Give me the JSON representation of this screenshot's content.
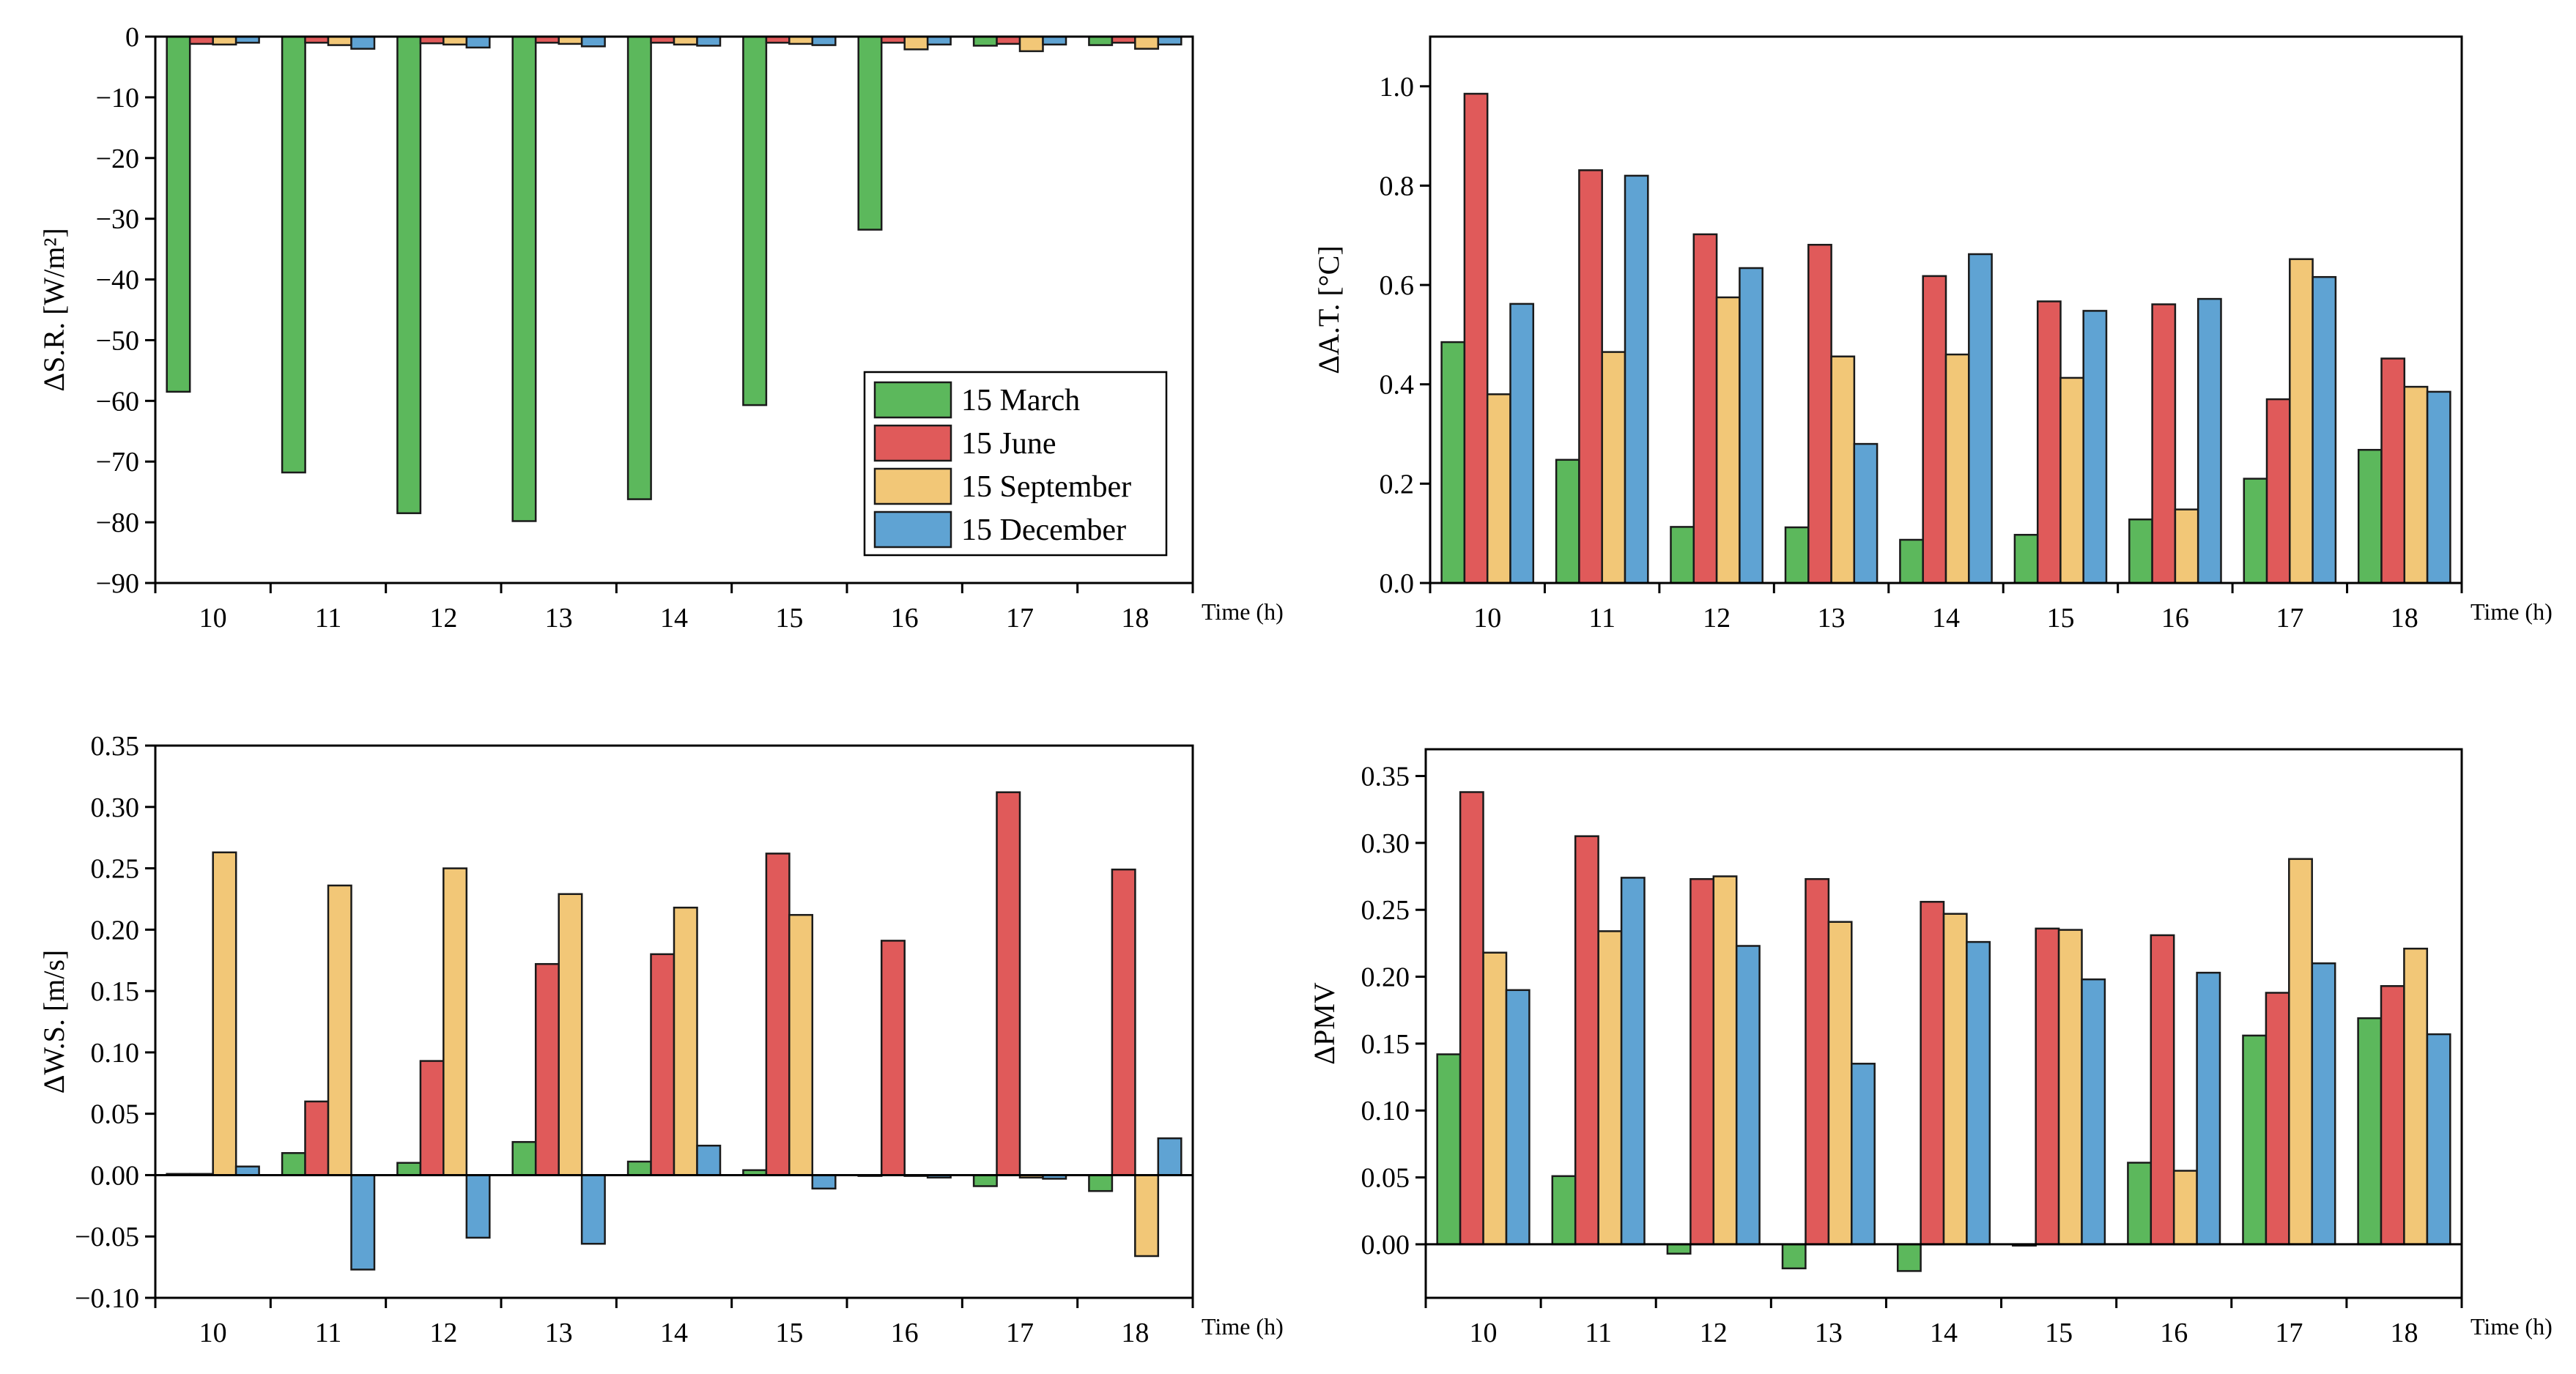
{
  "series_meta": [
    {
      "name": "15 March",
      "color": "#5cb85c"
    },
    {
      "name": "15 June",
      "color": "#e05a5a"
    },
    {
      "name": "15 September",
      "color": "#f2c777"
    },
    {
      "name": "15 December",
      "color": "#5fa3d3"
    }
  ],
  "chart_data": [
    {
      "type": "bar",
      "title": "",
      "xlabel": "Time (h)",
      "ylabel": "ΔS.R. [W/m²]",
      "categories": [
        "10",
        "11",
        "12",
        "13",
        "14",
        "15",
        "16",
        "17",
        "18"
      ],
      "ylim": [
        -90,
        0
      ],
      "yticks": [
        0,
        -10,
        -20,
        -30,
        -40,
        -50,
        -60,
        -70,
        -80,
        -90
      ],
      "ytick_labels": [
        "0",
        "−10",
        "−20",
        "−30",
        "−40",
        "−50",
        "−60",
        "−70",
        "−80",
        "−90"
      ],
      "legend": "inside-lower-right",
      "series": [
        {
          "name": "15 March",
          "values": [
            -58.5,
            -71.8,
            -78.5,
            -79.8,
            -76.2,
            -60.7,
            -31.8,
            -1.5,
            -1.4
          ]
        },
        {
          "name": "15 June",
          "values": [
            -1.2,
            -1.0,
            -1.1,
            -1.0,
            -1.0,
            -1.0,
            -1.0,
            -1.2,
            -1.0
          ]
        },
        {
          "name": "15 September",
          "values": [
            -1.3,
            -1.4,
            -1.3,
            -1.2,
            -1.3,
            -1.2,
            -2.1,
            -2.4,
            -2.0
          ]
        },
        {
          "name": "15 December",
          "values": [
            -1.0,
            -2.0,
            -1.8,
            -1.6,
            -1.5,
            -1.4,
            -1.3,
            -1.3,
            -1.3
          ]
        }
      ]
    },
    {
      "type": "bar",
      "title": "",
      "xlabel": "Time (h)",
      "ylabel": "ΔA.T. [°C]",
      "categories": [
        "10",
        "11",
        "12",
        "13",
        "14",
        "15",
        "16",
        "17",
        "18"
      ],
      "ylim": [
        0,
        1.1
      ],
      "yticks": [
        0,
        0.2,
        0.4,
        0.6,
        0.8,
        1.0
      ],
      "ytick_labels": [
        "0.0",
        "0.2",
        "0.4",
        "0.6",
        "0.8",
        "1.0"
      ],
      "series": [
        {
          "name": "15 March",
          "values": [
            0.485,
            0.248,
            0.113,
            0.112,
            0.087,
            0.097,
            0.128,
            0.21,
            0.268
          ]
        },
        {
          "name": "15 June",
          "values": [
            0.985,
            0.831,
            0.702,
            0.681,
            0.618,
            0.567,
            0.561,
            0.37,
            0.452
          ]
        },
        {
          "name": "15 September",
          "values": [
            0.38,
            0.465,
            0.575,
            0.456,
            0.46,
            0.413,
            0.148,
            0.652,
            0.395
          ]
        },
        {
          "name": "15 December",
          "values": [
            0.562,
            0.82,
            0.634,
            0.28,
            0.662,
            0.548,
            0.572,
            0.616,
            0.385
          ]
        }
      ]
    },
    {
      "type": "bar",
      "title": "",
      "xlabel": "Time (h)",
      "ylabel": "ΔW.S. [m/s]",
      "categories": [
        "10",
        "11",
        "12",
        "13",
        "14",
        "15",
        "16",
        "17",
        "18"
      ],
      "ylim": [
        -0.1,
        0.35
      ],
      "yticks": [
        -0.1,
        -0.05,
        0,
        0.05,
        0.1,
        0.15,
        0.2,
        0.25,
        0.3,
        0.35
      ],
      "ytick_labels": [
        "−0.10",
        "−0.05",
        "0.00",
        "0.05",
        "0.10",
        "0.15",
        "0.20",
        "0.25",
        "0.30",
        "0.35"
      ],
      "series": [
        {
          "name": "15 March",
          "values": [
            0.001,
            0.018,
            0.01,
            0.027,
            0.011,
            0.004,
            0.0,
            -0.009,
            -0.013
          ]
        },
        {
          "name": "15 June",
          "values": [
            0.001,
            0.06,
            0.093,
            0.172,
            0.18,
            0.262,
            0.191,
            0.312,
            0.249
          ]
        },
        {
          "name": "15 September",
          "values": [
            0.263,
            0.236,
            0.25,
            0.229,
            0.218,
            0.212,
            0.0,
            -0.002,
            -0.066
          ]
        },
        {
          "name": "15 December",
          "values": [
            0.007,
            -0.077,
            -0.051,
            -0.056,
            0.024,
            -0.011,
            -0.002,
            -0.003,
            0.03
          ]
        }
      ]
    },
    {
      "type": "bar",
      "title": "",
      "xlabel": "Time (h)",
      "ylabel": "ΔPMV",
      "categories": [
        "10",
        "11",
        "12",
        "13",
        "14",
        "15",
        "16",
        "17",
        "18"
      ],
      "ylim": [
        -0.04,
        0.37
      ],
      "yticks": [
        0,
        0.05,
        0.1,
        0.15,
        0.2,
        0.25,
        0.3,
        0.35
      ],
      "ytick_labels": [
        "0.00",
        "0.05",
        "0.10",
        "0.15",
        "0.20",
        "0.25",
        "0.30",
        "0.35"
      ],
      "series": [
        {
          "name": "15 March",
          "values": [
            0.142,
            0.051,
            -0.007,
            -0.018,
            -0.02,
            -0.001,
            0.061,
            0.156,
            0.169
          ]
        },
        {
          "name": "15 June",
          "values": [
            0.338,
            0.305,
            0.273,
            0.273,
            0.256,
            0.236,
            0.231,
            0.188,
            0.193
          ]
        },
        {
          "name": "15 September",
          "values": [
            0.218,
            0.234,
            0.275,
            0.241,
            0.247,
            0.235,
            0.055,
            0.288,
            0.221
          ]
        },
        {
          "name": "15 December",
          "values": [
            0.19,
            0.274,
            0.223,
            0.135,
            0.226,
            0.198,
            0.203,
            0.21,
            0.157
          ]
        }
      ]
    }
  ]
}
